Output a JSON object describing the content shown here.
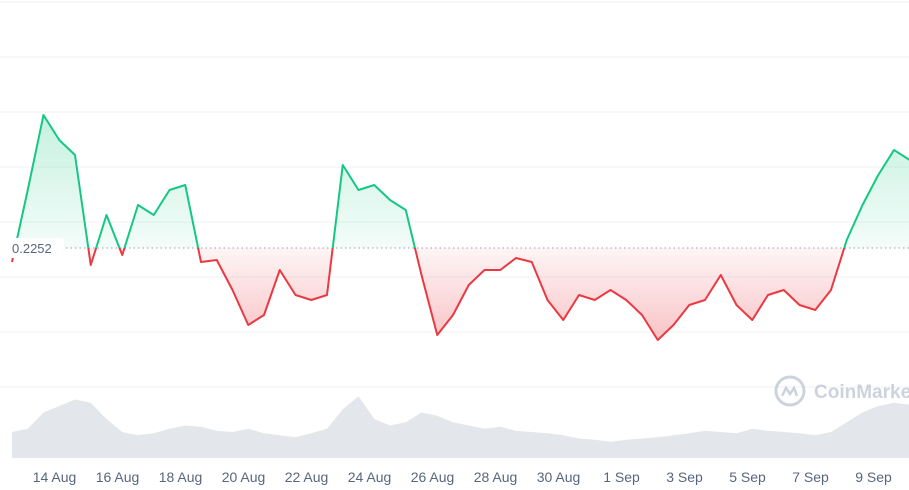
{
  "chart_data": {
    "type": "line",
    "baseline": 0.2252,
    "watermark": "CoinMarketCap",
    "ylim": [
      0.21,
      0.25
    ],
    "xlim": [
      0,
      57
    ],
    "xticks": [
      {
        "value": 2.7,
        "label": "14 Aug"
      },
      {
        "value": 6.7,
        "label": "16 Aug"
      },
      {
        "value": 10.7,
        "label": "18 Aug"
      },
      {
        "value": 14.7,
        "label": "20 Aug"
      },
      {
        "value": 18.7,
        "label": "22 Aug"
      },
      {
        "value": 22.7,
        "label": "24 Aug"
      },
      {
        "value": 26.7,
        "label": "26 Aug"
      },
      {
        "value": 30.7,
        "label": "28 Aug"
      },
      {
        "value": 34.7,
        "label": "30 Aug"
      },
      {
        "value": 38.7,
        "label": "1 Sep"
      },
      {
        "value": 42.7,
        "label": "3 Sep"
      },
      {
        "value": 46.7,
        "label": "5 Sep"
      },
      {
        "value": 50.7,
        "label": "7 Sep"
      },
      {
        "value": 54.7,
        "label": "9 Sep"
      }
    ],
    "colors": {
      "above": "#16c784",
      "below": "#ea3943",
      "volume": "#e3e6ea"
    },
    "series": [
      {
        "values": [
          0.2238,
          0.231,
          0.2385,
          0.236,
          0.2345,
          0.2235,
          0.2285,
          0.2245,
          0.2295,
          0.2285,
          0.231,
          0.2315,
          0.2238,
          0.224,
          0.221,
          0.2175,
          0.2185,
          0.223,
          0.2205,
          0.22,
          0.2205,
          0.2335,
          0.231,
          0.2315,
          0.23,
          0.229,
          0.2225,
          0.2165,
          0.2185,
          0.2215,
          0.223,
          0.223,
          0.2242,
          0.2238,
          0.22,
          0.218,
          0.2205,
          0.22,
          0.221,
          0.22,
          0.2185,
          0.216,
          0.2175,
          0.2195,
          0.22,
          0.2225,
          0.2195,
          0.218,
          0.2205,
          0.221,
          0.2195,
          0.219,
          0.221,
          0.226,
          0.2295,
          0.2325,
          0.235,
          0.234
        ]
      }
    ],
    "volume": [
      40,
      45,
      70,
      80,
      90,
      85,
      60,
      40,
      35,
      38,
      45,
      50,
      48,
      42,
      40,
      45,
      38,
      35,
      32,
      38,
      45,
      75,
      95,
      60,
      50,
      55,
      70,
      65,
      55,
      50,
      45,
      48,
      42,
      40,
      38,
      35,
      30,
      28,
      25,
      28,
      30,
      32,
      35,
      38,
      42,
      40,
      38,
      45,
      42,
      40,
      38,
      35,
      40,
      55,
      70,
      80,
      85,
      82
    ],
    "volume_ylim": [
      0,
      100
    ]
  }
}
